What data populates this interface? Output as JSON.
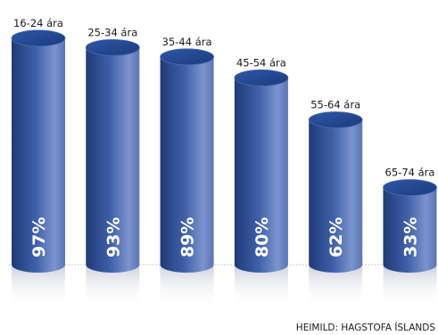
{
  "chart_data": {
    "type": "bar",
    "categories": [
      "16-24 ára",
      "25-34 ára",
      "35-44 ára",
      "45-54 ára",
      "55-64 ára",
      "65-74 ára"
    ],
    "values": [
      97,
      93,
      89,
      80,
      62,
      33
    ],
    "value_labels": [
      "97%",
      "93%",
      "89%",
      "80%",
      "62%",
      "33%"
    ],
    "unit": "%",
    "ylim": [
      0,
      100
    ],
    "grid": false,
    "legend": "none",
    "source": "HEIMILD: HAGSTOFA ÍSLANDS"
  },
  "colors": {
    "bar_dark": "#1f3a78",
    "bar_mid": "#3f5fa8",
    "bar_light": "#7b94cd",
    "bar_top": "#2a4d97",
    "reflection": "#d8dbe4"
  }
}
